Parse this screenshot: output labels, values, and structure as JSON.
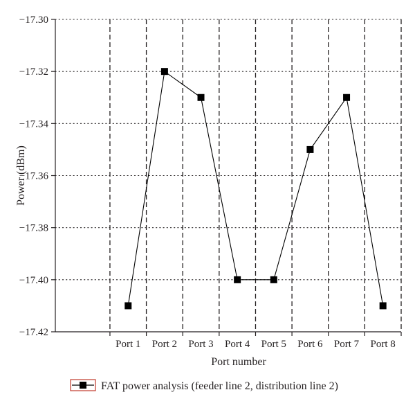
{
  "chart_data": {
    "type": "line",
    "title": "",
    "xlabel": "Port number",
    "ylabel": "Power (dBm)",
    "categories": [
      "Port 1",
      "Port 2",
      "Port 3",
      "Port 4",
      "Port 5",
      "Port 6",
      "Port 7",
      "Port 8"
    ],
    "ylim": [
      -17.42,
      -17.3
    ],
    "yticks": [
      -17.3,
      -17.32,
      -17.34,
      -17.36,
      -17.38,
      -17.4,
      -17.42
    ],
    "ytick_labels": [
      "−17.30",
      "−17.32",
      "−17.34",
      "−17.36",
      "−17.38",
      "−17.40",
      "−17.42"
    ],
    "grid": "y dotted, x dashed",
    "legend_position": "bottom",
    "series": [
      {
        "name": "FAT power analysis (feeder line 2, distribution line 2)",
        "values": [
          -17.41,
          -17.32,
          -17.33,
          -17.4,
          -17.4,
          -17.35,
          -17.33,
          -17.41
        ],
        "marker": "square",
        "color": "#000000"
      }
    ],
    "legend_border_color": "#c0392b"
  }
}
